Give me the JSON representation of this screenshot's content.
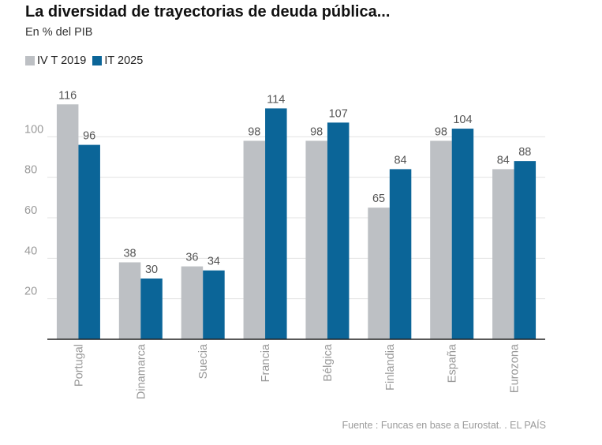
{
  "colors": {
    "series1": "#bdc0c4",
    "series2": "#0b6598",
    "grid": "#e3e3e3",
    "axis": "#222222",
    "tick": "#999999",
    "label": "#555555"
  },
  "source": "Fuente : Funcas en base a Eurostat. . EL PAÍS",
  "chart_data": {
    "type": "bar",
    "title": "La diversidad de trayectorias de deuda pública...",
    "subtitle": "En % del PIB",
    "xlabel": "",
    "ylabel": "",
    "ylim": [
      0,
      120
    ],
    "yticks": [
      20,
      40,
      60,
      80,
      100
    ],
    "grid": true,
    "legend_position": "top-left",
    "categories": [
      "Portugal",
      "Dinamarca",
      "Suecia",
      "Francia",
      "Bélgica",
      "Finlandia",
      "España",
      "Eurozona"
    ],
    "series": [
      {
        "name": "IV T 2019",
        "values": [
          116,
          38,
          36,
          98,
          98,
          65,
          98,
          84
        ]
      },
      {
        "name": "IT 2025",
        "values": [
          96,
          30,
          34,
          114,
          107,
          84,
          104,
          88
        ]
      }
    ]
  }
}
